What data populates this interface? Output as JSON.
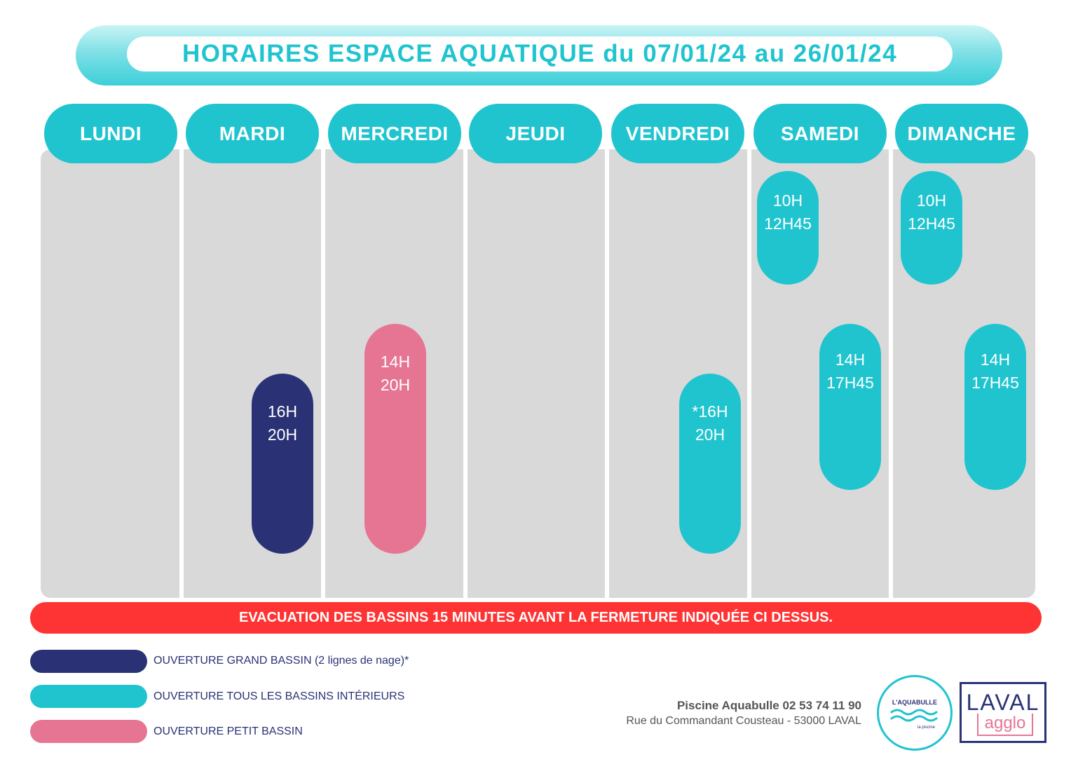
{
  "title": "HORAIRES ESPACE AQUATIQUE du 07/01/24 au 26/01/24",
  "days": [
    "LUNDI",
    "MARDI",
    "MERCREDI",
    "JEUDI",
    "VENDREDI",
    "SAMEDI",
    "DIMANCHE"
  ],
  "slots": {
    "mardi": {
      "start": "16H",
      "end": "20H",
      "type": "grand-bassin"
    },
    "mercredi": {
      "start": "14H",
      "end": "20H",
      "type": "petit-bassin"
    },
    "vendredi": {
      "start": "*16H",
      "end": "20H",
      "type": "tous-bassins"
    },
    "samedi_matin": {
      "start": "10H",
      "end": "12H45",
      "type": "tous-bassins"
    },
    "samedi_aprem": {
      "start": "14H",
      "end": "17H45",
      "type": "tous-bassins"
    },
    "dimanche_matin": {
      "start": "10H",
      "end": "12H45",
      "type": "tous-bassins"
    },
    "dimanche_aprem": {
      "start": "14H",
      "end": "17H45",
      "type": "tous-bassins"
    }
  },
  "warning": "EVACUATION DES BASSINS  15 MINUTES AVANT LA FERMETURE INDIQUÉE CI DESSUS.",
  "legend": [
    {
      "label": "OUVERTURE GRAND BASSIN (2 lignes de nage)*",
      "color": "#2a3275"
    },
    {
      "label": "OUVERTURE TOUS LES BASSINS INTÉRIEURS",
      "color": "#20c4cf"
    },
    {
      "label": "OUVERTURE PETIT BASSIN",
      "color": "#e67594"
    }
  ],
  "contact": {
    "name_phone": "Piscine Aquabulle 02 53 74 11 90",
    "address": "Rue du Commandant Cousteau - 53000 LAVAL"
  },
  "logos": {
    "aquabulle_name": "L'AQUABULLE",
    "aquabulle_sub": "la piscine",
    "laval_word": "LAVAL",
    "agglo_word": "agglo"
  },
  "colors": {
    "cyan": "#20c4cf",
    "navy": "#2a3275",
    "pink": "#e67594",
    "red": "#fe3333",
    "grid_gray": "#d9d9d9"
  }
}
